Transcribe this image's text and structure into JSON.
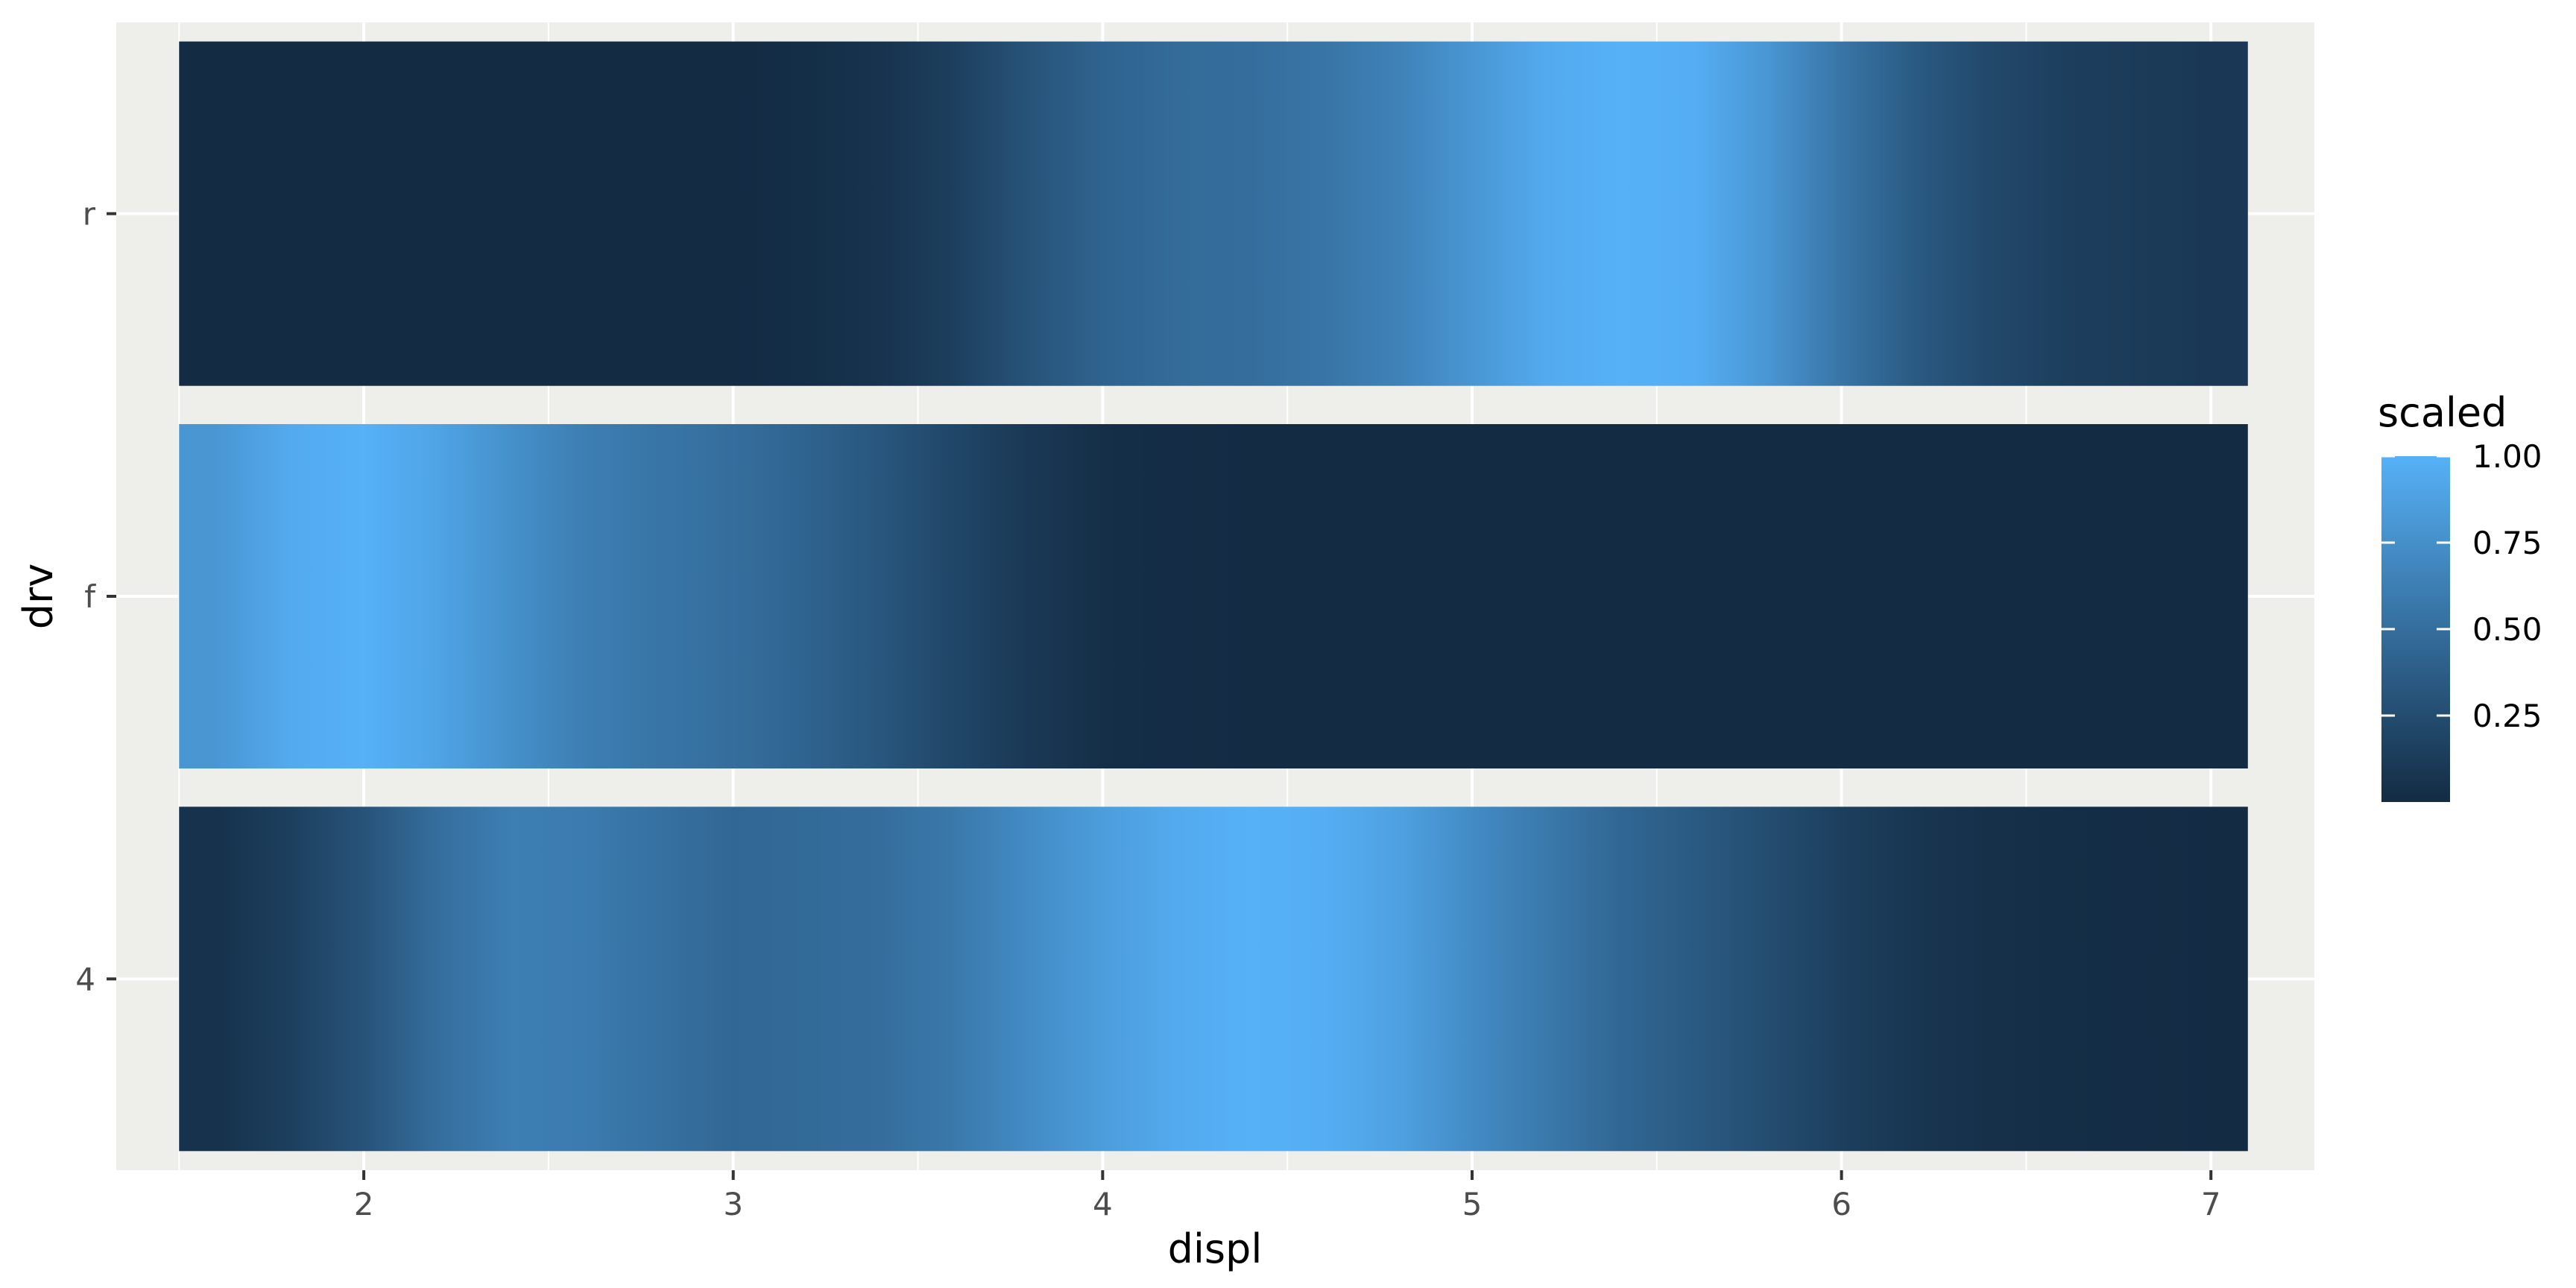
{
  "chart_data": {
    "type": "heatmap",
    "xlabel": "displ",
    "ylabel": "drv",
    "xlim": [
      1.33,
      7.28
    ],
    "x_ticks": [
      2,
      3,
      4,
      5,
      6,
      7
    ],
    "x_tick_labels": [
      "2",
      "3",
      "4",
      "5",
      "6",
      "7"
    ],
    "categories": [
      "4",
      "f",
      "r"
    ],
    "x": [
      1.6,
      1.8,
      2.0,
      2.2,
      2.4,
      2.6,
      2.8,
      3.0,
      3.2,
      3.4,
      3.6,
      3.8,
      4.0,
      4.2,
      4.4,
      4.6,
      4.8,
      5.0,
      5.2,
      5.4,
      5.6,
      5.8,
      6.0,
      6.2,
      6.4,
      6.6,
      6.8,
      7.0
    ],
    "series": [
      {
        "name": "4",
        "values": [
          0.05,
          0.15,
          0.3,
          0.5,
          0.62,
          0.6,
          0.52,
          0.45,
          0.47,
          0.5,
          0.58,
          0.72,
          0.85,
          0.95,
          1.0,
          0.98,
          0.88,
          0.72,
          0.58,
          0.45,
          0.35,
          0.25,
          0.15,
          0.08,
          0.04,
          0.02,
          0.01,
          0.0
        ]
      },
      {
        "name": "f",
        "values": [
          0.8,
          0.95,
          1.0,
          0.9,
          0.75,
          0.62,
          0.55,
          0.5,
          0.42,
          0.32,
          0.2,
          0.1,
          0.03,
          0.01,
          0.0,
          0.0,
          0.0,
          0.0,
          0.0,
          0.0,
          0.0,
          0.0,
          0.0,
          0.0,
          0.0,
          0.0,
          0.0,
          0.0
        ]
      },
      {
        "name": "r",
        "values": [
          0.0,
          0.0,
          0.0,
          0.0,
          0.0,
          0.0,
          0.0,
          0.0,
          0.02,
          0.06,
          0.15,
          0.3,
          0.42,
          0.48,
          0.5,
          0.55,
          0.65,
          0.8,
          0.95,
          1.0,
          0.98,
          0.8,
          0.55,
          0.35,
          0.22,
          0.15,
          0.12,
          0.1
        ]
      }
    ],
    "colorscale": {
      "low": "#132B43",
      "high": "#56B1F7",
      "range": [
        0,
        1
      ]
    },
    "legend": {
      "title": "scaled",
      "placement": "right",
      "ticks": [
        0.25,
        0.5,
        0.75,
        1.0
      ],
      "tick_labels": [
        "0.25",
        "0.50",
        "0.75",
        "1.00"
      ]
    },
    "grid": true
  }
}
